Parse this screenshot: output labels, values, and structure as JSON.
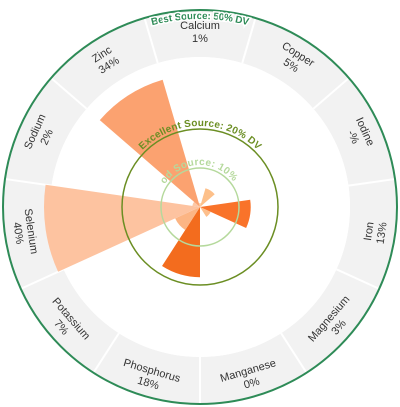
{
  "chart_data": {
    "type": "polar-area",
    "rings": [
      {
        "label": "Best Source: 50% DV",
        "value": 50,
        "color": "#2e8b57"
      },
      {
        "label": "Excellent Source: 20% DV",
        "value": 20,
        "color": "#6b8e23"
      },
      {
        "label": "Good Source: 10% DV",
        "value": 10,
        "color": "#b5d99c"
      }
    ],
    "categories": [
      {
        "name": "Calcium",
        "value_label": "1%",
        "value": 1,
        "color": "#fdd0a2"
      },
      {
        "name": "Copper",
        "value_label": "5%",
        "value": 5,
        "color": "#fdc08a"
      },
      {
        "name": "Iodine",
        "value_label": "-%",
        "value": 0,
        "color": "#fdb070"
      },
      {
        "name": "Iron",
        "value_label": "13%",
        "value": 13,
        "color": "#f9732a"
      },
      {
        "name": "Magnesium",
        "value_label": "3%",
        "value": 3,
        "color": "#fdbf8c"
      },
      {
        "name": "Manganese",
        "value_label": "0%",
        "value": 0,
        "color": "#fdd0a2"
      },
      {
        "name": "Phosphorus",
        "value_label": "18%",
        "value": 18,
        "color": "#f36c1e"
      },
      {
        "name": "Potassium",
        "value_label": "7%",
        "value": 7,
        "color": "#fcb584"
      },
      {
        "name": "Selenium",
        "value_label": "40%",
        "value": 40,
        "color": "#fdc3a0"
      },
      {
        "name": "Sodium",
        "value_label": "2%",
        "value": 2,
        "color": "#fdc8a6"
      },
      {
        "name": "Zinc",
        "value_label": "34%",
        "value": 34,
        "color": "#fba270"
      }
    ]
  }
}
